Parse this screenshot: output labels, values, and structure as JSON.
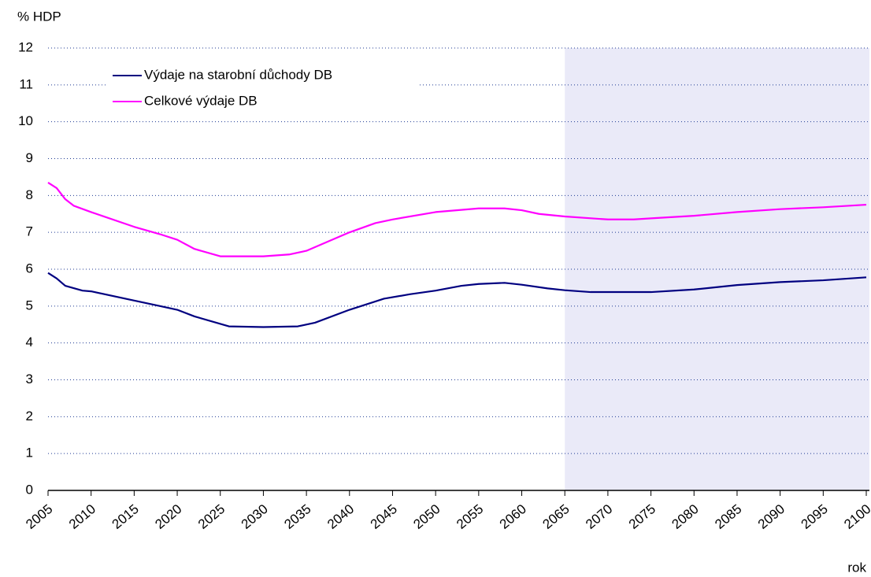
{
  "chart_data": {
    "type": "line",
    "y_label": "% HDP",
    "x_label": "rok",
    "xlim": [
      2005,
      2100
    ],
    "xticks": [
      2005,
      2010,
      2015,
      2020,
      2025,
      2030,
      2035,
      2040,
      2045,
      2050,
      2055,
      2060,
      2065,
      2070,
      2075,
      2080,
      2085,
      2090,
      2095,
      2100
    ],
    "ylim": [
      0,
      12
    ],
    "yticks": [
      0,
      1,
      2,
      3,
      4,
      5,
      6,
      7,
      8,
      9,
      10,
      11,
      12
    ],
    "grid": true,
    "legend": "upper left",
    "shaded_x": [
      2065,
      2100
    ],
    "shade_color": "#eaeaf8",
    "series": [
      {
        "name": "Výdaje na starobní důchody DB",
        "color": "#000080",
        "x": [
          2005,
          2006,
          2007,
          2009,
          2010,
          2015,
          2018,
          2020,
          2022,
          2026,
          2030,
          2034,
          2036,
          2040,
          2044,
          2047,
          2050,
          2053,
          2055,
          2058,
          2060,
          2063,
          2065,
          2068,
          2075,
          2080,
          2085,
          2090,
          2095,
          2100
        ],
        "values": [
          5.9,
          5.75,
          5.55,
          5.42,
          5.4,
          5.15,
          5.0,
          4.9,
          4.72,
          4.45,
          4.43,
          4.45,
          4.55,
          4.9,
          5.2,
          5.32,
          5.42,
          5.55,
          5.6,
          5.63,
          5.58,
          5.48,
          5.43,
          5.38,
          5.38,
          5.45,
          5.57,
          5.65,
          5.7,
          5.78
        ]
      },
      {
        "name": "Celkové výdaje DB",
        "color": "#ff00ff",
        "x": [
          2005,
          2006,
          2007,
          2008,
          2010,
          2015,
          2018,
          2020,
          2022,
          2025,
          2030,
          2033,
          2035,
          2038,
          2040,
          2043,
          2045,
          2050,
          2055,
          2058,
          2060,
          2062,
          2065,
          2070,
          2073,
          2075,
          2080,
          2085,
          2090,
          2095,
          2100
        ],
        "values": [
          8.35,
          8.2,
          7.9,
          7.72,
          7.55,
          7.15,
          6.95,
          6.8,
          6.55,
          6.35,
          6.35,
          6.4,
          6.5,
          6.8,
          7.0,
          7.25,
          7.35,
          7.55,
          7.65,
          7.65,
          7.6,
          7.5,
          7.43,
          7.35,
          7.35,
          7.38,
          7.45,
          7.55,
          7.63,
          7.68,
          7.75
        ]
      }
    ]
  }
}
